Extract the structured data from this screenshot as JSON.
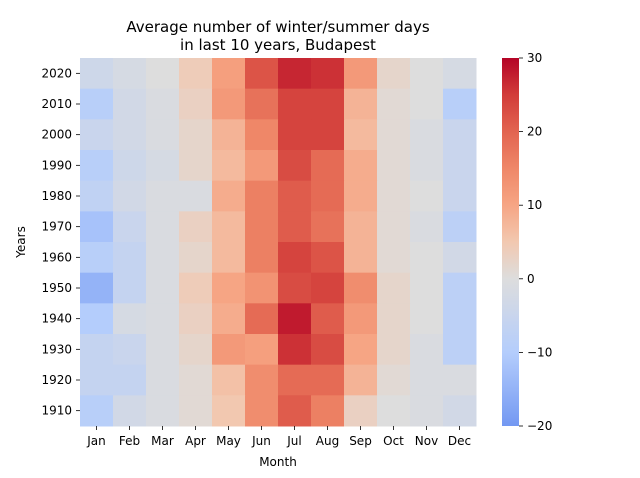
{
  "chart_data": {
    "type": "heatmap",
    "title_lines": [
      "Average number of winter/summer days",
      "in last 10 years, Budapest"
    ],
    "xlabel": "Month",
    "ylabel": "Years",
    "x_categories": [
      "Jan",
      "Feb",
      "Mar",
      "Apr",
      "May",
      "Jun",
      "Jul",
      "Aug",
      "Sep",
      "Oct",
      "Nov",
      "Dec"
    ],
    "y_categories": [
      "2020",
      "2010",
      "2000",
      "1990",
      "1980",
      "1970",
      "1960",
      "1950",
      "1940",
      "1930",
      "1920",
      "1910"
    ],
    "values": [
      [
        -4,
        -2,
        0,
        4,
        11,
        22,
        27,
        26,
        12,
        2,
        0,
        -2
      ],
      [
        -9,
        -3,
        -1,
        3,
        12,
        18,
        24,
        24,
        8,
        1,
        0,
        -9
      ],
      [
        -5,
        -3,
        -1,
        2,
        8,
        15,
        24,
        24,
        7,
        1,
        -1,
        -5
      ],
      [
        -9,
        -4,
        -2,
        2,
        7,
        12,
        23,
        19,
        9,
        1,
        -1,
        -5
      ],
      [
        -7,
        -3,
        -1,
        -1,
        9,
        16,
        21,
        19,
        9,
        1,
        0,
        -5
      ],
      [
        -12,
        -5,
        -1,
        3,
        7,
        16,
        21,
        18,
        8,
        1,
        -1,
        -8
      ],
      [
        -9,
        -6,
        -1,
        2,
        7,
        16,
        24,
        22,
        8,
        1,
        0,
        -3
      ],
      [
        -15,
        -6,
        -1,
        4,
        10,
        13,
        23,
        24,
        14,
        2,
        0,
        -8
      ],
      [
        -10,
        -2,
        -1,
        3,
        9,
        19,
        28,
        21,
        12,
        2,
        0,
        -8
      ],
      [
        -6,
        -5,
        -1,
        2,
        12,
        11,
        26,
        23,
        10,
        2,
        -1,
        -8
      ],
      [
        -6,
        -6,
        -1,
        1,
        6,
        14,
        19,
        19,
        8,
        1,
        -1,
        -1
      ],
      [
        -9,
        -3,
        -1,
        1,
        5,
        14,
        21,
        16,
        3,
        0,
        -1,
        -3
      ]
    ],
    "colorbar": {
      "min": -20,
      "max": 30,
      "ticks": [
        -20,
        -10,
        0,
        10,
        20,
        30
      ],
      "colormap": "coolwarm"
    }
  }
}
